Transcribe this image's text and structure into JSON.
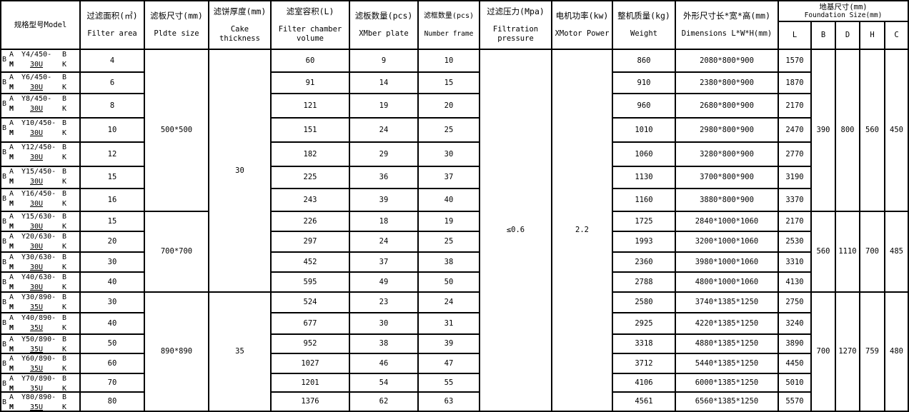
{
  "headers": {
    "model": "规格型号Model",
    "area": {
      "cn": "过滤面积(㎡)",
      "en": "Filter area"
    },
    "plate_size": {
      "cn": "滤板尺寸(mm)",
      "en": "Pldte size"
    },
    "cake": {
      "cn": "滤饼厚度(mm)",
      "en": "Cake thickness"
    },
    "volume": {
      "cn": "滤室容积(L)",
      "en": "Filter chamber volume"
    },
    "plates": {
      "cn": "滤板数量(pcs)",
      "en": "XMber plate"
    },
    "frames": {
      "cn": "滤框数量(pcs)",
      "en": "Number frame"
    },
    "pressure": {
      "cn": "过滤压力(Mpa)",
      "en": "Filtration pressure"
    },
    "power": {
      "cn": "电机功率(kw)",
      "en": "XMotor Power"
    },
    "weight": {
      "cn": "整机质量(kg)",
      "en": "Weight"
    },
    "dims": {
      "cn": "外形尺寸长*宽*高(mm)",
      "en": "Dimensions L*W*H(mm)"
    },
    "foundation": {
      "cn": "地基尺寸(mm)",
      "en": "Foundation Size(mm)"
    },
    "f_cols": [
      "L",
      "B",
      "D",
      "H",
      "C"
    ]
  },
  "pressure": "≤0.6",
  "power": "2.2",
  "groups": [
    {
      "plate_size": "500*500",
      "B": "390",
      "D": "800",
      "H": "560",
      "C": "450",
      "rows": 7
    },
    {
      "plate_size": "700*700",
      "B": "560",
      "D": "1110",
      "H": "700",
      "C": "485",
      "rows": 4
    },
    {
      "plate_size": "890*890",
      "B": "700",
      "D": "1270",
      "H": "759",
      "C": "480",
      "rows": 6
    }
  ],
  "cake_groups": [
    {
      "value": "30",
      "rows": 11
    },
    {
      "value": "35",
      "rows": 6
    }
  ],
  "rows": [
    {
      "model": [
        "B",
        "A",
        "M",
        "Y4/450-",
        "30U",
        "B",
        "K"
      ],
      "area": "4",
      "volume": "60",
      "plates": "9",
      "frames": "10",
      "weight": "860",
      "dims": "2080*800*900",
      "L": "1570"
    },
    {
      "model": [
        "B",
        "A",
        "M",
        "Y6/450-",
        "30U",
        "B",
        "K"
      ],
      "area": "6",
      "volume": "91",
      "plates": "14",
      "frames": "15",
      "weight": "910",
      "dims": "2380*800*900",
      "L": "1870"
    },
    {
      "model": [
        "B",
        "A",
        "M",
        "Y8/450-",
        "30U",
        "B",
        "K"
      ],
      "area": "8",
      "volume": "121",
      "plates": "19",
      "frames": "20",
      "weight": "960",
      "dims": "2680*800*900",
      "L": "2170"
    },
    {
      "model": [
        "B",
        "A",
        "M",
        "Y10/450-",
        "30U",
        "B",
        "K"
      ],
      "area": "10",
      "volume": "151",
      "plates": "24",
      "frames": "25",
      "weight": "1010",
      "dims": "2980*800*900",
      "L": "2470"
    },
    {
      "model": [
        "B",
        "A",
        "M",
        "Y12/450-",
        "30U",
        "B",
        "K"
      ],
      "area": "12",
      "volume": "182",
      "plates": "29",
      "frames": "30",
      "weight": "1060",
      "dims": "3280*800*900",
      "L": "2770"
    },
    {
      "model": [
        "B",
        "A",
        "M",
        "Y15/450-",
        "30U",
        "B",
        "K"
      ],
      "area": "15",
      "volume": "225",
      "plates": "36",
      "frames": "37",
      "weight": "1130",
      "dims": "3700*800*900",
      "L": "3190"
    },
    {
      "model": [
        "B",
        "A",
        "M",
        "Y16/450-",
        "30U",
        "B",
        "K"
      ],
      "area": "16",
      "volume": "243",
      "plates": "39",
      "frames": "40",
      "weight": "1160",
      "dims": "3880*800*900",
      "L": "3370"
    },
    {
      "model": [
        "B",
        "A",
        "M",
        "Y15/630-",
        "30U",
        "B",
        "K"
      ],
      "area": "15",
      "volume": "226",
      "plates": "18",
      "frames": "19",
      "weight": "1725",
      "dims": "2840*1000*1060",
      "L": "2170"
    },
    {
      "model": [
        "B",
        "A",
        "M",
        "Y20/630-",
        "30U",
        "B",
        "K"
      ],
      "area": "20",
      "volume": "297",
      "plates": "24",
      "frames": "25",
      "weight": "1993",
      "dims": "3200*1000*1060",
      "L": "2530"
    },
    {
      "model": [
        "B",
        "A",
        "M",
        "Y30/630-",
        "30U",
        "B",
        "K"
      ],
      "area": "30",
      "volume": "452",
      "plates": "37",
      "frames": "38",
      "weight": "2360",
      "dims": "3980*1000*1060",
      "L": "3310"
    },
    {
      "model": [
        "B",
        "A",
        "M",
        "Y40/630-",
        "30U",
        "B",
        "K"
      ],
      "area": "40",
      "volume": "595",
      "plates": "49",
      "frames": "50",
      "weight": "2788",
      "dims": "4800*1000*1060",
      "L": "4130"
    },
    {
      "model": [
        "B",
        "A",
        "M",
        "Y30/890-",
        "35U",
        "B",
        "K"
      ],
      "area": "30",
      "volume": "524",
      "plates": "23",
      "frames": "24",
      "weight": "2580",
      "dims": "3740*1385*1250",
      "L": "2750"
    },
    {
      "model": [
        "B",
        "A",
        "M",
        "Y40/890-",
        "35U",
        "B",
        "K"
      ],
      "area": "40",
      "volume": "677",
      "plates": "30",
      "frames": "31",
      "weight": "2925",
      "dims": "4220*1385*1250",
      "L": "3240"
    },
    {
      "model": [
        "B",
        "A",
        "M",
        "Y50/890-",
        "35U",
        "B",
        "K"
      ],
      "area": "50",
      "volume": "952",
      "plates": "38",
      "frames": "39",
      "weight": "3318",
      "dims": "4880*1385*1250",
      "L": "3890"
    },
    {
      "model": [
        "B",
        "A",
        "M",
        "Y60/890-",
        "35U",
        "B",
        "K"
      ],
      "area": "60",
      "volume": "1027",
      "plates": "46",
      "frames": "47",
      "weight": "3712",
      "dims": "5440*1385*1250",
      "L": "4450"
    },
    {
      "model": [
        "B",
        "A",
        "M",
        "Y70/890-",
        "35U",
        "B",
        "K"
      ],
      "area": "70",
      "volume": "1201",
      "plates": "54",
      "frames": "55",
      "weight": "4106",
      "dims": "6000*1385*1250",
      "L": "5010"
    },
    {
      "model": [
        "B",
        "A",
        "M",
        "Y80/890-",
        "35U",
        "B",
        "K"
      ],
      "area": "80",
      "volume": "1376",
      "plates": "62",
      "frames": "63",
      "weight": "4561",
      "dims": "6560*1385*1250",
      "L": "5570"
    }
  ]
}
